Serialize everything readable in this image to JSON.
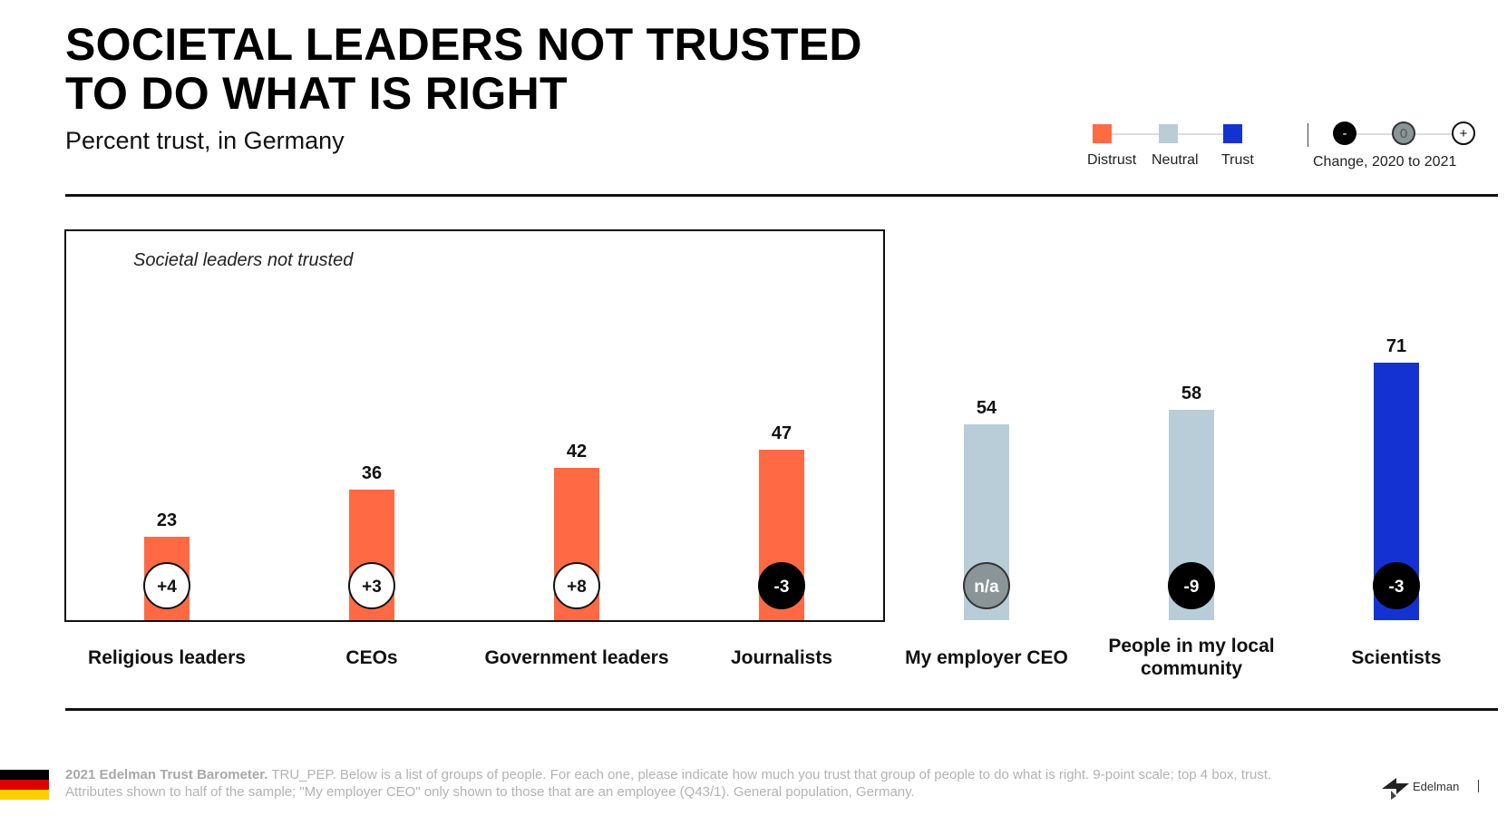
{
  "title": "SOCIETAL LEADERS NOT TRUSTED\nTO DO WHAT IS RIGHT",
  "subtitle": "Percent trust, in Germany",
  "legend": {
    "distrust": "Distrust",
    "neutral": "Neutral",
    "trust": "Trust",
    "change_minus": "-",
    "change_zero": "0",
    "change_plus": "+",
    "change_label": "Change, 2020 to 2021"
  },
  "colors": {
    "distrust": "#ff6a45",
    "neutral": "#b9cdd8",
    "trust": "#1432d2",
    "negative_badge": "#000000",
    "neutral_badge": "#8a9598"
  },
  "highlight_box_label": "Societal leaders not trusted",
  "chart_data": {
    "type": "bar",
    "title": "SOCIETAL LEADERS NOT TRUSTED TO DO WHAT IS RIGHT",
    "subtitle": "Percent trust, in Germany",
    "ylabel": "",
    "ylim": [
      0,
      100
    ],
    "grid": false,
    "legend_position": "top-right",
    "categories": [
      "Religious leaders",
      "CEOs",
      "Government leaders",
      "Journalists",
      "My employer CEO",
      "People in my local community",
      "Scientists"
    ],
    "category_lines": [
      [
        "Religious leaders"
      ],
      [
        "CEOs"
      ],
      [
        "Government leaders"
      ],
      [
        "Journalists"
      ],
      [
        "My employer CEO"
      ],
      [
        "People in my local",
        "community"
      ],
      [
        "Scientists"
      ]
    ],
    "values": [
      23,
      36,
      42,
      47,
      54,
      58,
      71
    ],
    "trust_level": [
      "distrust",
      "distrust",
      "distrust",
      "distrust",
      "neutral",
      "neutral",
      "trust"
    ],
    "change_2020_2021": [
      "+4",
      "+3",
      "+8",
      "-3",
      "n/a",
      "-9",
      "-3"
    ]
  },
  "footer": {
    "source": "2021 Edelman Trust Barometer.",
    "note": " TRU_PEP. Below is a list of groups of people. For each one, please indicate how much you trust that group of people to do what is right. 9-point scale; top 4 box, trust. Attributes shown to half of the sample; \"My employer CEO\" only shown to those that are an employee (Q43/1). General population, Germany."
  },
  "logo": "Edelman"
}
